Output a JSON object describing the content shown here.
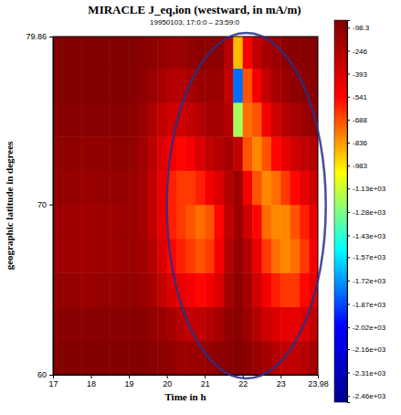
{
  "chart_data": {
    "type": "heatmap",
    "title": "MIRACLE J_eq,ion (westward, in mA/m)",
    "subtitle": "19950103, 17:0:0 – 23:59:0",
    "xlabel": "Time in h",
    "ylabel": "geographic latitude in degrees",
    "xlim": [
      17,
      23.98
    ],
    "xticks": [
      17,
      18,
      19,
      20,
      21,
      22,
      23,
      23.98
    ],
    "ylim": [
      60,
      79.86
    ],
    "yticks": [
      60,
      70,
      79.86
    ],
    "x_edges": [
      17,
      17.25,
      17.5,
      17.75,
      18,
      18.25,
      18.5,
      18.75,
      19,
      19.25,
      19.5,
      19.75,
      20,
      20.25,
      20.5,
      20.75,
      21,
      21.25,
      21.5,
      21.75,
      22,
      22.25,
      22.5,
      22.75,
      23,
      23.25,
      23.5,
      23.75,
      23.98
    ],
    "y_edges": [
      60,
      62,
      64,
      66,
      68,
      70,
      72,
      74,
      76,
      78,
      79.86
    ],
    "cells": [
      [
        -60,
        -60,
        -60,
        -60,
        -60,
        -60,
        -60,
        -60,
        -60,
        -60,
        -80,
        -100,
        -120,
        -150,
        -150,
        -150,
        -120,
        -100,
        -80,
        -60,
        -100,
        -150,
        -200,
        -250,
        -300,
        -300,
        -250,
        -200
      ],
      [
        -80,
        -80,
        -80,
        -80,
        -80,
        -80,
        -80,
        -80,
        -80,
        -100,
        -120,
        -150,
        -200,
        -250,
        -300,
        -300,
        -250,
        -200,
        -120,
        -80,
        -150,
        -250,
        -350,
        -400,
        -450,
        -450,
        -400,
        -300
      ],
      [
        -120,
        -130,
        -140,
        -150,
        -150,
        -140,
        -130,
        -120,
        -120,
        -150,
        -200,
        -300,
        -400,
        -450,
        -500,
        -550,
        -500,
        -400,
        -200,
        -100,
        -200,
        -350,
        -500,
        -600,
        -650,
        -650,
        -550,
        -450
      ],
      [
        -150,
        -160,
        -170,
        -180,
        -180,
        -170,
        -160,
        -150,
        -150,
        -180,
        -250,
        -400,
        -550,
        -600,
        -650,
        -700,
        -650,
        -500,
        -250,
        -120,
        -250,
        -450,
        -650,
        -750,
        -800,
        -750,
        -650,
        -500
      ],
      [
        -150,
        -160,
        -170,
        -180,
        -180,
        -170,
        -160,
        -150,
        -160,
        -200,
        -300,
        -450,
        -600,
        -650,
        -700,
        -750,
        -700,
        -550,
        -300,
        -150,
        -350,
        -550,
        -750,
        -800,
        -800,
        -700,
        -600,
        -450
      ],
      [
        -120,
        -130,
        -140,
        -150,
        -150,
        -140,
        -130,
        -130,
        -150,
        -200,
        -300,
        -450,
        -600,
        -650,
        -650,
        -600,
        -500,
        -400,
        -250,
        -150,
        -500,
        -700,
        -800,
        -750,
        -650,
        -550,
        -450,
        -350
      ],
      [
        -100,
        -100,
        -110,
        -120,
        -120,
        -110,
        -100,
        -100,
        -120,
        -180,
        -280,
        -400,
        -500,
        -550,
        -500,
        -400,
        -300,
        -250,
        -200,
        -300,
        -700,
        -800,
        -700,
        -550,
        -450,
        -350,
        -300,
        -250
      ],
      [
        -80,
        -80,
        -80,
        -80,
        -80,
        -80,
        -80,
        -80,
        -100,
        -150,
        -220,
        -300,
        -350,
        -350,
        -300,
        -250,
        -200,
        -200,
        -250,
        -1200,
        -750,
        -700,
        -500,
        -350,
        -250,
        -200,
        -150,
        -120
      ],
      [
        -60,
        -60,
        -60,
        -60,
        -60,
        -60,
        -60,
        -60,
        -80,
        -100,
        -150,
        -200,
        -250,
        -250,
        -200,
        -150,
        -150,
        -150,
        -300,
        -1800,
        -700,
        -500,
        -300,
        -200,
        -150,
        -100,
        -100,
        -80
      ],
      [
        -60,
        -60,
        -60,
        -60,
        -60,
        -60,
        -60,
        -60,
        -60,
        -80,
        -100,
        -120,
        -150,
        -150,
        -120,
        -100,
        -100,
        -100,
        -250,
        -900,
        -500,
        -300,
        -200,
        -150,
        -100,
        -80,
        -80,
        -60
      ]
    ],
    "colors": [
      "#00008f",
      "#0000ff",
      "#00ffff",
      "#ffff00",
      "#ff0000",
      "#800000"
    ],
    "color_range": [
      -2500,
      -50
    ],
    "colorbar_ticks": [
      -98.3,
      -246,
      -393,
      -541,
      -688,
      -836,
      -983,
      {
        "value": -1130,
        "label": "-1.13e+03"
      },
      {
        "value": -1280,
        "label": "-1.28e+03"
      },
      {
        "value": -1430,
        "label": "-1.43e+03"
      },
      {
        "value": -1570,
        "label": "-1.57e+03"
      },
      {
        "value": -1720,
        "label": "-1.72e+03"
      },
      {
        "value": -1870,
        "label": "-1.87e+03"
      },
      {
        "value": -2020,
        "label": "-2.02e+03"
      },
      {
        "value": -2160,
        "label": "-2.16e+03"
      },
      {
        "value": -2310,
        "label": "-2.31e+03"
      },
      {
        "value": -2460,
        "label": "-2.46e+03"
      }
    ]
  }
}
